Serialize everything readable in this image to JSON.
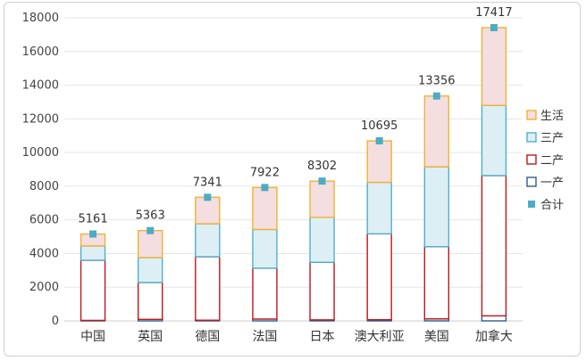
{
  "chart_data": {
    "type": "bar",
    "stacked": true,
    "categories": [
      "中国",
      "英国",
      "德国",
      "法国",
      "日本",
      "澳大利亚",
      "美国",
      "加拿大"
    ],
    "series": [
      {
        "name": "一产",
        "values": [
          30,
          90,
          40,
          110,
          60,
          70,
          120,
          300
        ],
        "color": "#2E5C8A"
      },
      {
        "name": "二产",
        "values": [
          3570,
          2190,
          3770,
          3020,
          3420,
          5100,
          4290,
          8330
        ],
        "color": "#C0161C"
      },
      {
        "name": "三产",
        "values": [
          850,
          1480,
          1960,
          2300,
          2670,
          3060,
          4740,
          4170
        ],
        "color": "#4FB1C9"
      },
      {
        "name": "生活",
        "values": [
          711,
          1603,
          1571,
          2492,
          2152,
          2465,
          4206,
          4617
        ],
        "color": "#F2B233"
      }
    ],
    "totals": {
      "name": "合计",
      "values": [
        5161,
        5363,
        7341,
        7922,
        8302,
        10695,
        13356,
        17417
      ],
      "color": "#4BACC6"
    },
    "fill_colors": {
      "一产": "#ffffff",
      "二产": "#ffffff",
      "三产": "#DDEFF5",
      "生活": "#F5DEE0"
    },
    "legend_order": [
      "生活",
      "三产",
      "二产",
      "一产",
      "合计"
    ],
    "yticks": [
      "0",
      "2000",
      "4000",
      "6000",
      "8000",
      "10000",
      "12000",
      "14000",
      "16000",
      "18000"
    ],
    "ylim": [
      0,
      18000
    ],
    "grid": true,
    "legend_position": "right",
    "title": "",
    "xlabel": "",
    "ylabel": ""
  }
}
